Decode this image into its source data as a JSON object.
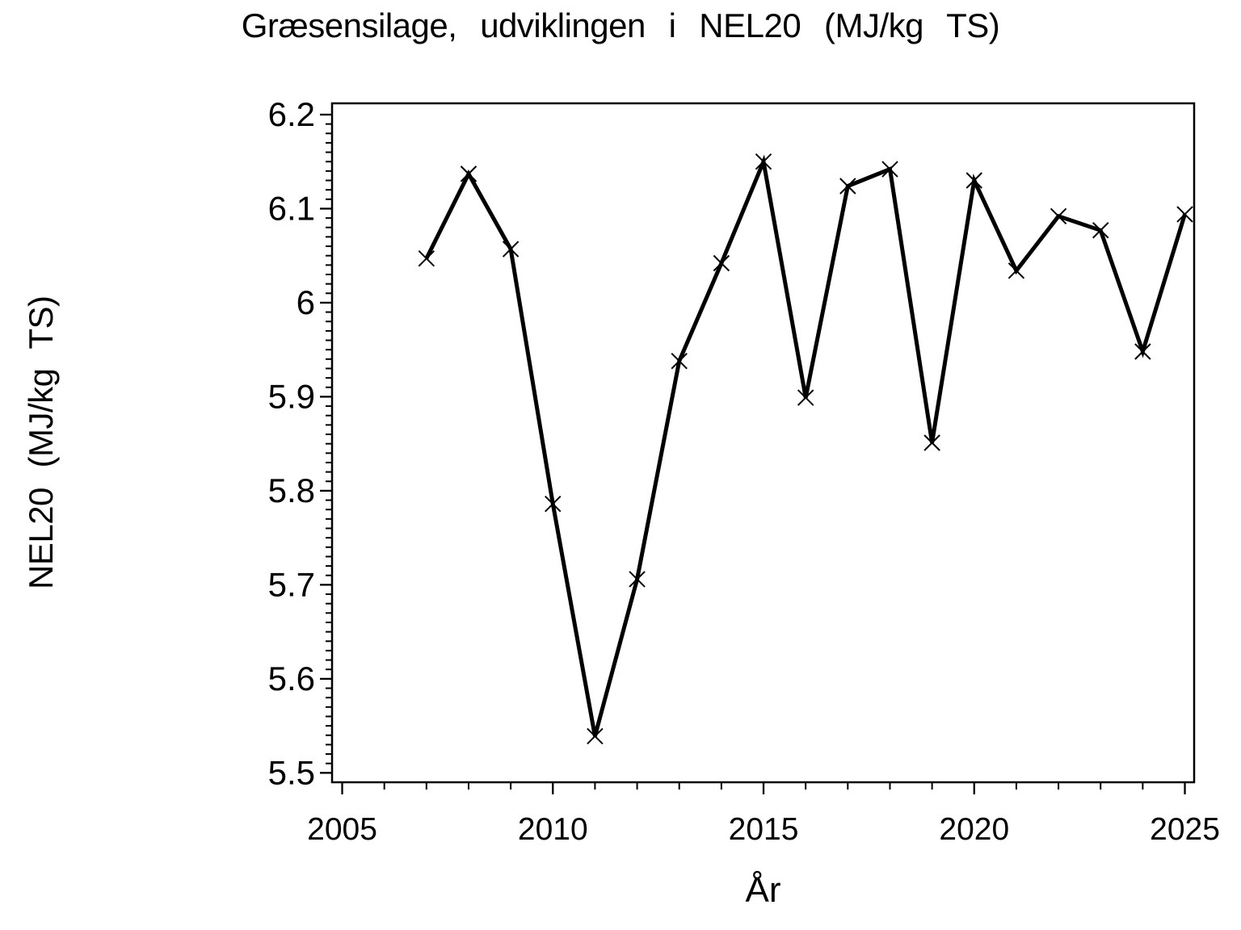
{
  "chart_data": {
    "type": "line",
    "title": "Græsensilage, udviklingen i NEL20 (MJ/kg TS)",
    "xlabel": "År",
    "ylabel": "NEL20 (MJ/kg TS)",
    "x": [
      2007,
      2008,
      2009,
      2010,
      2011,
      2012,
      2013,
      2014,
      2015,
      2016,
      2017,
      2018,
      2019,
      2020,
      2021,
      2022,
      2023,
      2024,
      2025
    ],
    "values": [
      6.047,
      6.137,
      6.057,
      5.786,
      5.539,
      5.706,
      5.938,
      6.042,
      6.15,
      5.899,
      6.124,
      6.142,
      5.851,
      6.13,
      6.034,
      6.092,
      6.077,
      5.948,
      6.094
    ],
    "series_name": "NEL20",
    "marker": "x",
    "xlim": [
      2004.76,
      2025.22
    ],
    "ylim": [
      5.49,
      6.212
    ],
    "x_major_ticks": [
      2005,
      2010,
      2015,
      2020,
      2025
    ],
    "x_tick_labels": [
      "2005",
      "2010",
      "2015",
      "2020",
      "2025"
    ],
    "x_minor_step": 1,
    "y_major_ticks": [
      5.5,
      5.6,
      5.7,
      5.8,
      5.9,
      6.0,
      6.1,
      6.2
    ],
    "y_tick_labels": [
      "5.5",
      "5.6",
      "5.7",
      "5.8",
      "5.9",
      "6",
      "6.1",
      "6.2"
    ],
    "y_minor_step": 0.01,
    "grid": false,
    "legend": "none",
    "line_color": "#000000",
    "marker_color": "#000000",
    "axis_color": "#000000",
    "background_color": "#ffffff"
  }
}
